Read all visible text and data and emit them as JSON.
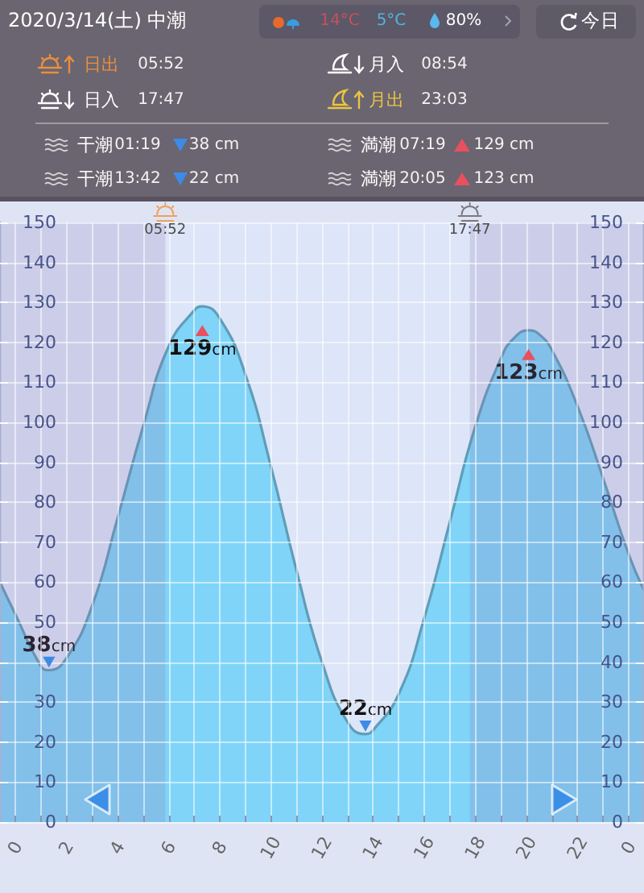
{
  "chart_data": {
    "type": "area",
    "title": "2020/3/14(土) 中潮",
    "x": [
      "2020-03-13T23:24",
      "2020-03-14T00:00",
      "2020-03-14T01:00",
      "2020-03-14T01:19",
      "2020-03-14T02:00",
      "2020-03-14T03:00",
      "2020-03-14T04:00",
      "2020-03-14T05:00",
      "2020-03-14T06:00",
      "2020-03-14T07:00",
      "2020-03-14T07:19",
      "2020-03-14T08:00",
      "2020-03-14T09:00",
      "2020-03-14T10:00",
      "2020-03-14T11:00",
      "2020-03-14T12:00",
      "2020-03-14T13:00",
      "2020-03-14T13:42",
      "2020-03-14T14:00",
      "2020-03-14T15:00",
      "2020-03-14T16:00",
      "2020-03-14T17:00",
      "2020-03-14T18:00",
      "2020-03-14T19:00",
      "2020-03-14T19:30",
      "2020-03-14T20:05",
      "2020-03-14T20:30",
      "2020-03-14T21:00",
      "2020-03-14T22:00",
      "2020-03-14T23:00",
      "2020-03-15T00:00",
      "2020-03-15T00:36"
    ],
    "series": [
      {
        "color": "#80d4f8",
        "values": [
          60,
          52,
          39,
          38,
          41,
          54,
          76,
          99,
          119,
          128,
          129,
          126,
          112,
          89,
          63,
          40,
          25,
          22,
          23,
          32,
          51,
          75,
          99,
          116,
          121,
          123,
          122,
          118,
          104,
          86,
          67,
          58
        ],
        "value_labels": [
          null,
          null,
          null,
          "38cm",
          null,
          null,
          null,
          null,
          null,
          null,
          "129cm",
          null,
          null,
          null,
          null,
          null,
          null,
          "22cm",
          null,
          null,
          null,
          null,
          null,
          null,
          null,
          "123cm",
          null,
          null,
          null,
          null,
          null,
          null
        ]
      }
    ],
    "xlim": [
      "2020-03-13T23:24",
      "2020-03-15T00:36"
    ],
    "xticks": [
      {
        "value": "2020-03-14T00:00",
        "label": "0"
      },
      {
        "value": "2020-03-14T01:00",
        "label": null
      },
      {
        "value": "2020-03-14T02:00",
        "label": "2"
      },
      {
        "value": "2020-03-14T03:00",
        "label": null
      },
      {
        "value": "2020-03-14T04:00",
        "label": "4"
      },
      {
        "value": "2020-03-14T05:00",
        "label": null
      },
      {
        "value": "2020-03-14T06:00",
        "label": "6"
      },
      {
        "value": "2020-03-14T07:00",
        "label": null
      },
      {
        "value": "2020-03-14T08:00",
        "label": "8"
      },
      {
        "value": "2020-03-14T09:00",
        "label": null
      },
      {
        "value": "2020-03-14T10:00",
        "label": "10"
      },
      {
        "value": "2020-03-14T11:00",
        "label": null
      },
      {
        "value": "2020-03-14T12:00",
        "label": "12"
      },
      {
        "value": "2020-03-14T13:00",
        "label": null
      },
      {
        "value": "2020-03-14T14:00",
        "label": "14"
      },
      {
        "value": "2020-03-14T15:00",
        "label": null
      },
      {
        "value": "2020-03-14T16:00",
        "label": "16"
      },
      {
        "value": "2020-03-14T17:00",
        "label": null
      },
      {
        "value": "2020-03-14T18:00",
        "label": "18"
      },
      {
        "value": "2020-03-14T19:00",
        "label": null
      },
      {
        "value": "2020-03-14T20:00",
        "label": "20"
      },
      {
        "value": "2020-03-14T21:00",
        "label": null
      },
      {
        "value": "2020-03-14T22:00",
        "label": "22"
      },
      {
        "value": "2020-03-14T23:00",
        "label": null
      },
      {
        "value": "2020-03-15T00:00",
        "label": "0"
      }
    ],
    "ylim": [
      0,
      150
    ],
    "yticks": [
      0,
      10,
      20,
      30,
      {
        "value": 40,
        "label": null
      },
      50,
      60,
      70,
      80,
      90,
      100,
      110,
      120,
      130,
      140,
      150
    ],
    "y2lim": [
      0,
      150
    ],
    "y2ticks": [
      0,
      10,
      20,
      30,
      40,
      50,
      60,
      70,
      80,
      90,
      100,
      110,
      120,
      130,
      140,
      150
    ],
    "grid": true,
    "marker": "none",
    "bands": [
      {
        "axis": "x",
        "from": "2020-03-13T23:24",
        "to": "2020-03-14T05:52",
        "color": "#8a74b0"
      },
      {
        "axis": "x",
        "from": "2020-03-14T17:47",
        "to": "2020-03-15T00:36",
        "color": "#8a74b0"
      }
    ],
    "annotations": [
      "14°C",
      "5°C",
      "80%",
      "今日",
      "日出",
      "05:52",
      "月入",
      "08:54",
      "日入",
      "17:47",
      "月出",
      "23:03",
      "干潮",
      "01:19",
      "38 cm",
      "満潮",
      "07:19",
      "129 cm",
      "干潮",
      "13:42",
      "22 cm",
      "満潮",
      "20:05",
      "123 cm",
      {
        "text": "05:52",
        "x": "2020-03-14T05:52",
        "y": 148
      },
      {
        "text": "17:47",
        "x": "2020-03-14T17:47",
        "y": 148
      }
    ]
  }
}
